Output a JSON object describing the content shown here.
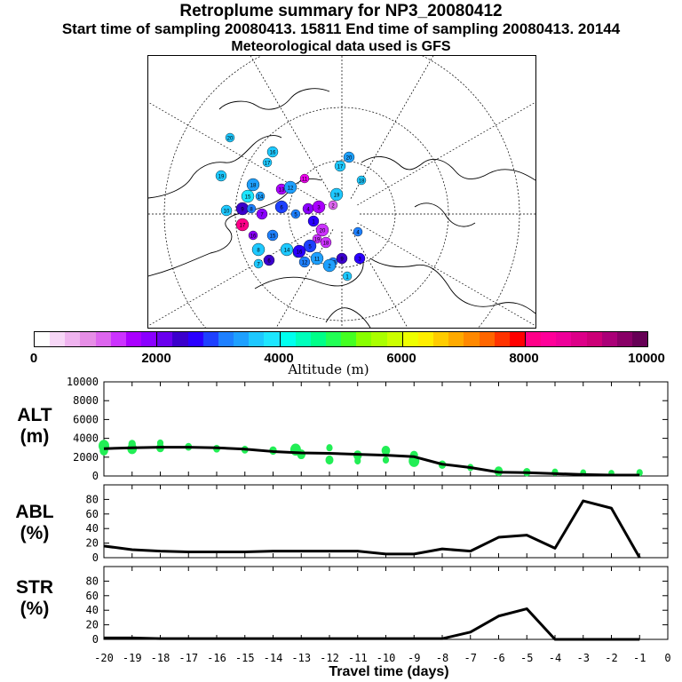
{
  "header": {
    "title": "Retroplume summary for NP3_20080412",
    "subtitle": "Start time of sampling 20080413. 15811     End time of sampling 20080413. 20144",
    "met_note": "Meteorological data used is GFS"
  },
  "colorbar": {
    "label": "Altitude (m)",
    "ticks": [
      "0",
      "2000",
      "4000",
      "6000",
      "8000",
      "10000"
    ],
    "colors": [
      "#ffffff",
      "#f7d7f7",
      "#efb4ef",
      "#e68ee6",
      "#dd66ee",
      "#cc33ff",
      "#aa00ff",
      "#8a00ff",
      "#6a00ee",
      "#3b00cc",
      "#2a00ff",
      "#1e40ff",
      "#1e80ff",
      "#1ea0ff",
      "#1ec8ff",
      "#1ee6ff",
      "#00ffee",
      "#00ffbb",
      "#00ff88",
      "#22ff55",
      "#44ff22",
      "#88ff00",
      "#aaff00",
      "#ccff00",
      "#eeff00",
      "#ffee00",
      "#ffcc00",
      "#ffaa00",
      "#ff8800",
      "#ff6600",
      "#ff3300",
      "#ff0000",
      "#ff0088",
      "#ff0099",
      "#ee0099",
      "#dd0088",
      "#cc0077",
      "#aa0077",
      "#880066",
      "#660055"
    ]
  },
  "panels": {
    "alt": {
      "label1": "ALT",
      "label2": "(m)"
    },
    "abl": {
      "label1": "ABL",
      "label2": "(%)"
    },
    "str": {
      "label1": "STR",
      "label2": "(%)"
    }
  },
  "map_labels": [
    "20",
    "19",
    "18",
    "17",
    "16",
    "15",
    "14",
    "13",
    "12",
    "11",
    "10",
    "9",
    "8",
    "7",
    "6",
    "5",
    "4",
    "3",
    "2",
    "1"
  ],
  "chart_data": [
    {
      "type": "line",
      "name": "ALT",
      "ylabel": "ALT (m)",
      "ylim": [
        0,
        10000
      ],
      "yticks": [
        0,
        2000,
        4000,
        6000,
        8000,
        10000
      ],
      "x": [
        -20,
        -19,
        -18,
        -17,
        -16,
        -15,
        -14,
        -13,
        -12,
        -11,
        -10,
        -9,
        -8,
        -7,
        -6,
        -5,
        -4,
        -3,
        -2,
        -1
      ],
      "values": [
        2900,
        3000,
        3050,
        3050,
        3000,
        2850,
        2600,
        2450,
        2400,
        2300,
        2200,
        2050,
        1250,
        900,
        400,
        350,
        250,
        150,
        100,
        100
      ],
      "scatter_points": [
        {
          "x": -20,
          "y": 3200,
          "r": 2
        },
        {
          "x": -20,
          "y": 2700,
          "r": 1.6
        },
        {
          "x": -19,
          "y": 3400,
          "r": 1.4
        },
        {
          "x": -19,
          "y": 2900,
          "r": 1.8
        },
        {
          "x": -18,
          "y": 3500,
          "r": 1.2
        },
        {
          "x": -18,
          "y": 3000,
          "r": 1.5
        },
        {
          "x": -17,
          "y": 3100,
          "r": 1.3
        },
        {
          "x": -16,
          "y": 2900,
          "r": 1.3
        },
        {
          "x": -15,
          "y": 2800,
          "r": 1.3
        },
        {
          "x": -14,
          "y": 2700,
          "r": 1.4
        },
        {
          "x": -13.2,
          "y": 2800,
          "r": 2
        },
        {
          "x": -13,
          "y": 2300,
          "r": 1.6
        },
        {
          "x": -12,
          "y": 3000,
          "r": 1.2
        },
        {
          "x": -12,
          "y": 1700,
          "r": 1.5
        },
        {
          "x": -11,
          "y": 2200,
          "r": 1.6
        },
        {
          "x": -11,
          "y": 1600,
          "r": 1.2
        },
        {
          "x": -10,
          "y": 2700,
          "r": 1.6
        },
        {
          "x": -10,
          "y": 1700,
          "r": 1.2
        },
        {
          "x": -9,
          "y": 2200,
          "r": 1.5
        },
        {
          "x": -9,
          "y": 1600,
          "r": 2
        },
        {
          "x": -8,
          "y": 1200,
          "r": 1.4
        },
        {
          "x": -7,
          "y": 900,
          "r": 1.2
        },
        {
          "x": -6,
          "y": 500,
          "r": 1.6
        },
        {
          "x": -5,
          "y": 400,
          "r": 1.4
        },
        {
          "x": -4,
          "y": 400,
          "r": 1.2
        },
        {
          "x": -3,
          "y": 350,
          "r": 1.1
        },
        {
          "x": -2,
          "y": 300,
          "r": 1.1
        },
        {
          "x": -1,
          "y": 350,
          "r": 1.2
        }
      ]
    },
    {
      "type": "line",
      "name": "ABL",
      "ylabel": "ABL (%)",
      "ylim": [
        0,
        100
      ],
      "yticks": [
        0,
        20,
        40,
        60,
        80
      ],
      "x": [
        -20,
        -19,
        -18,
        -17,
        -16,
        -15,
        -14,
        -13,
        -12,
        -11,
        -10,
        -9,
        -8,
        -7,
        -6,
        -5,
        -4,
        -3,
        -2,
        -1
      ],
      "values": [
        16,
        11,
        9,
        8,
        8,
        8,
        9,
        9,
        9,
        9,
        5,
        5,
        12,
        9,
        28,
        31,
        13,
        78,
        68,
        0
      ]
    },
    {
      "type": "line",
      "name": "STR",
      "ylabel": "STR (%)",
      "ylim": [
        0,
        100
      ],
      "yticks": [
        0,
        20,
        40,
        60,
        80
      ],
      "x": [
        -20,
        -19,
        -18,
        -17,
        -16,
        -15,
        -14,
        -13,
        -12,
        -11,
        -10,
        -9,
        -8,
        -7,
        -6,
        -5,
        -4,
        -3,
        -2,
        -1
      ],
      "values": [
        2,
        2,
        1,
        1,
        1,
        1,
        1,
        1,
        1,
        1,
        1,
        1,
        1,
        10,
        32,
        42,
        0,
        0,
        0,
        0
      ]
    }
  ],
  "xaxis": {
    "label": "Travel time (days)",
    "ticks": [
      "-20",
      "-19",
      "-18",
      "-17",
      "-16",
      "-15",
      "-14",
      "-13",
      "-12",
      "-11",
      "-10",
      "-9",
      "-8",
      "-7",
      "-6",
      "-5",
      "-4",
      "-3",
      "-2",
      "-1",
      "0"
    ]
  }
}
